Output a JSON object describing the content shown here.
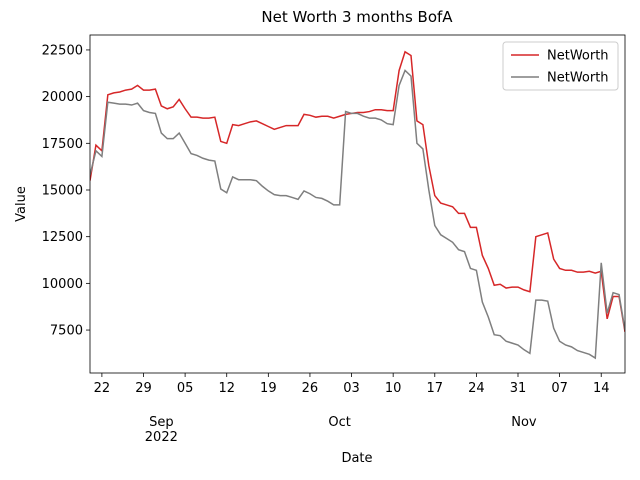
{
  "chart_data": {
    "type": "line",
    "title": "Net Worth 3 months BofA",
    "x_label": "Date",
    "y_label": "Value",
    "x": [
      "2022-08-20",
      "2022-08-21",
      "2022-08-22",
      "2022-08-23",
      "2022-08-24",
      "2022-08-25",
      "2022-08-26",
      "2022-08-27",
      "2022-08-28",
      "2022-08-29",
      "2022-08-30",
      "2022-08-31",
      "2022-09-01",
      "2022-09-02",
      "2022-09-03",
      "2022-09-04",
      "2022-09-05",
      "2022-09-06",
      "2022-09-07",
      "2022-09-08",
      "2022-09-09",
      "2022-09-10",
      "2022-09-11",
      "2022-09-12",
      "2022-09-13",
      "2022-09-14",
      "2022-09-15",
      "2022-09-16",
      "2022-09-17",
      "2022-09-18",
      "2022-09-19",
      "2022-09-20",
      "2022-09-21",
      "2022-09-22",
      "2022-09-23",
      "2022-09-24",
      "2022-09-25",
      "2022-09-26",
      "2022-09-27",
      "2022-09-28",
      "2022-09-29",
      "2022-09-30",
      "2022-10-01",
      "2022-10-02",
      "2022-10-03",
      "2022-10-04",
      "2022-10-05",
      "2022-10-06",
      "2022-10-07",
      "2022-10-08",
      "2022-10-09",
      "2022-10-10",
      "2022-10-11",
      "2022-10-12",
      "2022-10-13",
      "2022-10-14",
      "2022-10-15",
      "2022-10-16",
      "2022-10-17",
      "2022-10-18",
      "2022-10-19",
      "2022-10-20",
      "2022-10-21",
      "2022-10-22",
      "2022-10-23",
      "2022-10-24",
      "2022-10-25",
      "2022-10-26",
      "2022-10-27",
      "2022-10-28",
      "2022-10-29",
      "2022-10-30",
      "2022-10-31",
      "2022-11-01",
      "2022-11-02",
      "2022-11-03",
      "2022-11-04",
      "2022-11-05",
      "2022-11-06",
      "2022-11-07",
      "2022-11-08",
      "2022-11-09",
      "2022-11-10",
      "2022-11-11",
      "2022-11-12",
      "2022-11-13",
      "2022-11-14",
      "2022-11-15",
      "2022-11-16",
      "2022-11-17",
      "2022-11-18"
    ],
    "series": [
      {
        "name": "NetWorth",
        "color": "#d62728",
        "values": [
          15500,
          17400,
          17100,
          20100,
          20200,
          20250,
          20350,
          20400,
          20600,
          20350,
          20350,
          20400,
          19500,
          19350,
          19450,
          19850,
          19350,
          18900,
          18900,
          18850,
          18850,
          18900,
          17600,
          17500,
          18500,
          18450,
          18550,
          18650,
          18700,
          18550,
          18400,
          18250,
          18350,
          18450,
          18450,
          18450,
          19050,
          19000,
          18900,
          18950,
          18950,
          18850,
          18950,
          19050,
          19100,
          19150,
          19150,
          19200,
          19300,
          19300,
          19250,
          19250,
          21400,
          22400,
          22200,
          18700,
          18500,
          16300,
          14700,
          14300,
          14200,
          14100,
          13750,
          13750,
          13000,
          13000,
          11500,
          10800,
          9900,
          9950,
          9750,
          9800,
          9800,
          9650,
          9550,
          12500,
          12600,
          12700,
          11300,
          10800,
          10700,
          10700,
          10600,
          10600,
          10650,
          10550,
          10650,
          8100,
          9300,
          9300,
          7400
        ]
      },
      {
        "name": "NetWorth",
        "color": "#7f7f7f",
        "values": [
          15800,
          17100,
          16800,
          19700,
          19650,
          19600,
          19600,
          19550,
          19650,
          19250,
          19150,
          19100,
          18050,
          17750,
          17750,
          18050,
          17500,
          16950,
          16850,
          16700,
          16600,
          16550,
          15050,
          14850,
          15700,
          15550,
          15550,
          15550,
          15500,
          15200,
          14950,
          14750,
          14700,
          14700,
          14600,
          14500,
          14950,
          14800,
          14600,
          14550,
          14400,
          14200,
          14200,
          19200,
          19100,
          19100,
          18950,
          18850,
          18850,
          18750,
          18550,
          18500,
          20600,
          21400,
          21100,
          17500,
          17200,
          15000,
          13100,
          12600,
          12400,
          12200,
          11800,
          11700,
          10800,
          10700,
          9000,
          8200,
          7250,
          7200,
          6900,
          6800,
          6700,
          6450,
          6250,
          9100,
          9100,
          9050,
          7600,
          6900,
          6700,
          6600,
          6400,
          6300,
          6200,
          6000,
          11100,
          8400,
          9500,
          9400,
          7500
        ]
      }
    ],
    "xlim": [
      "2022-08-20",
      "2022-11-18"
    ],
    "xticks": [
      {
        "value": "2022-08-22",
        "label": "22"
      },
      {
        "value": "2022-08-29",
        "label": "29"
      },
      {
        "value": "2022-09-05",
        "label": "05"
      },
      {
        "value": "2022-09-12",
        "label": "12"
      },
      {
        "value": "2022-09-19",
        "label": "19"
      },
      {
        "value": "2022-09-26",
        "label": "26"
      },
      {
        "value": "2022-10-03",
        "label": "03"
      },
      {
        "value": "2022-10-10",
        "label": "10"
      },
      {
        "value": "2022-10-17",
        "label": "17"
      },
      {
        "value": "2022-10-24",
        "label": "24"
      },
      {
        "value": "2022-10-31",
        "label": "31"
      },
      {
        "value": "2022-11-07",
        "label": "07"
      },
      {
        "value": "2022-11-14",
        "label": "14"
      }
    ],
    "month_ticks": [
      {
        "value": "2022-09-01",
        "label": "Sep"
      },
      {
        "value": "2022-10-01",
        "label": "Oct"
      },
      {
        "value": "2022-11-01",
        "label": "Nov"
      }
    ],
    "year_label": "2022",
    "ylim": [
      5200,
      23300
    ],
    "yticks": [
      7500,
      10000,
      12500,
      15000,
      17500,
      20000,
      22500
    ],
    "grid": false,
    "legend": "upper right"
  }
}
